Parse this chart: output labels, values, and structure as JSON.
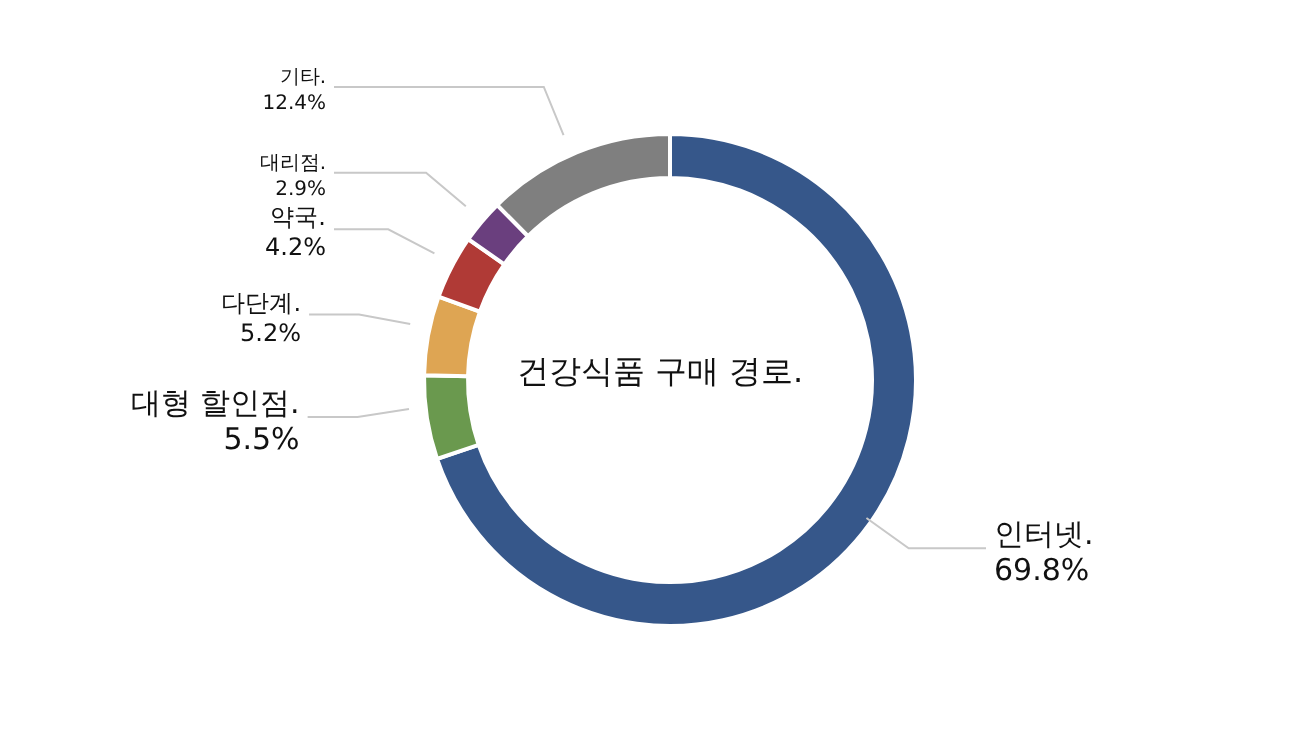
{
  "chart_data": {
    "type": "donut",
    "title": "건강식품 구매 경로.",
    "categories": [
      "인터넷.",
      "대형 할인점.",
      "다단계.",
      "약국.",
      "대리점.",
      "기타."
    ],
    "values": [
      69.8,
      5.5,
      5.2,
      4.2,
      2.9,
      12.4
    ],
    "value_labels": [
      "69.8%",
      "5.5%",
      "5.2%",
      "4.2%",
      "2.9%",
      "12.4%"
    ],
    "colors": [
      "#36578a",
      "#6a994e",
      "#dea553",
      "#b03a36",
      "#6a3f7e",
      "#7f7f7f"
    ]
  }
}
